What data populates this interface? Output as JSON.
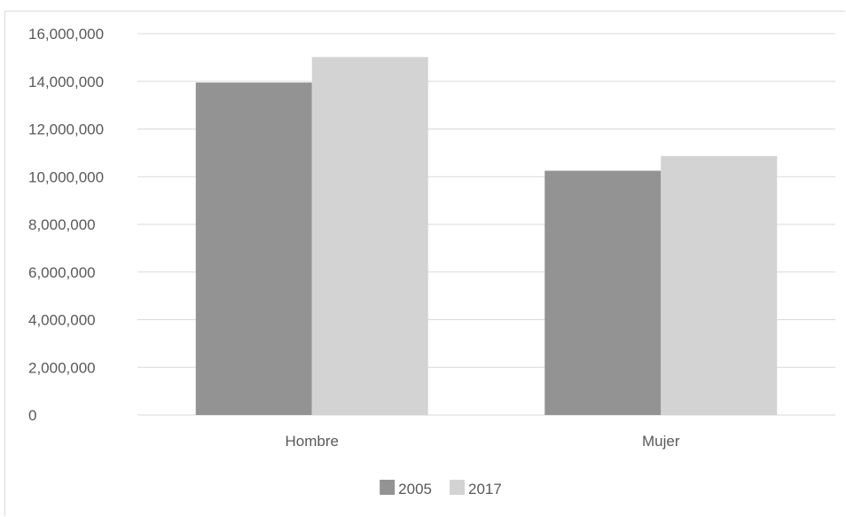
{
  "chart_data": {
    "type": "bar",
    "title": "",
    "xlabel": "",
    "ylabel": "",
    "categories": [
      "Hombre",
      "Mujer"
    ],
    "series": [
      {
        "name": "2005",
        "values": [
          13950000,
          10250000
        ],
        "color": "#939393"
      },
      {
        "name": "2017",
        "values": [
          15020000,
          10870000
        ],
        "color": "#d3d3d3"
      }
    ],
    "ylim": [
      0,
      16000000
    ],
    "yticks": [
      0,
      2000000,
      4000000,
      6000000,
      8000000,
      10000000,
      12000000,
      14000000,
      16000000
    ],
    "ytick_labels": [
      "0",
      "2,000,000",
      "4,000,000",
      "6,000,000",
      "8,000,000",
      "10,000,000",
      "12,000,000",
      "14,000,000",
      "16,000,000"
    ],
    "grid": true,
    "grid_color": "#d9d9d9",
    "legend_position": "bottom"
  }
}
